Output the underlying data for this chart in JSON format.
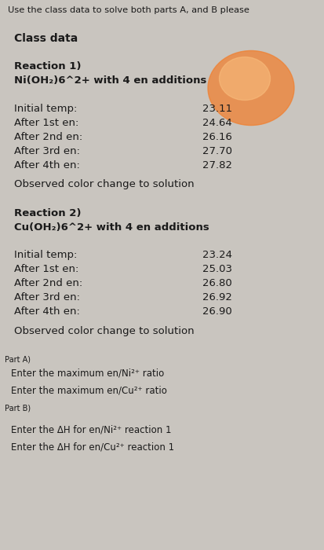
{
  "title": "Use the class data to solve both parts A, and B please",
  "section_header": "Class data",
  "reaction1_header": "Reaction 1)",
  "reaction1_sub": "Ni(OH₂)6^2+ with 4 en additions",
  "reaction1_labels": [
    "Initial temp:",
    "After 1st en:",
    "After 2nd en:",
    "After 3rd en:",
    "After 4th en:"
  ],
  "reaction1_values": [
    "23.11",
    "24.64",
    "26.16",
    "27.70",
    "27.82"
  ],
  "reaction1_color_note": "Observed color change to solution",
  "reaction2_header": "Reaction 2)",
  "reaction2_sub": "Cu(OH₂)6^2+ with 4 en additions",
  "reaction2_labels": [
    "Initial temp:",
    "After 1st en:",
    "After 2nd en:",
    "After 3rd en:",
    "After 4th en:"
  ],
  "reaction2_values": [
    "23.24",
    "25.03",
    "26.80",
    "26.92",
    "26.90"
  ],
  "reaction2_color_note": "Observed color change to solution",
  "partA_label": "Part A)",
  "partA_lines": [
    "Enter the maximum en/Ni²⁺ ratio",
    "Enter the maximum en/Cu²⁺ ratio"
  ],
  "partB_label": "Part B)",
  "partB_lines": [
    "Enter the ΔH for en/Ni²⁺ reaction 1",
    "Enter the ΔH for en/Cu²⁺ reaction 1"
  ],
  "bg_color": "#c9c5bf",
  "text_color": "#1a1a1a",
  "title_color": "#1a1a1a"
}
